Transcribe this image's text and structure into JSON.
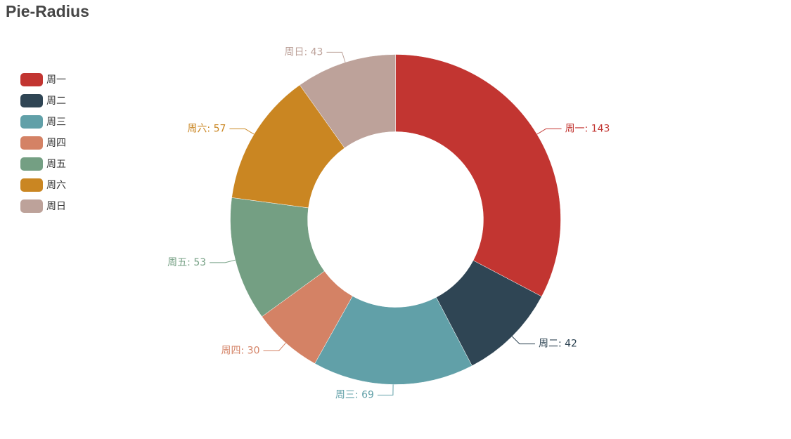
{
  "title": "Pie-Radius",
  "legend": [
    {
      "label": "周一",
      "color": "#c23531"
    },
    {
      "label": "周二",
      "color": "#2f4554"
    },
    {
      "label": "周三",
      "color": "#61a0a8"
    },
    {
      "label": "周四",
      "color": "#d48265"
    },
    {
      "label": "周五",
      "color": "#749f83"
    },
    {
      "label": "周六",
      "color": "#ca8622"
    },
    {
      "label": "周日",
      "color": "#bda29a"
    }
  ],
  "chart_data": {
    "type": "pie",
    "title": "Pie-Radius",
    "categories": [
      "周一",
      "周二",
      "周三",
      "周四",
      "周五",
      "周六",
      "周日"
    ],
    "values": [
      143,
      42,
      69,
      30,
      53,
      57,
      43
    ],
    "labels": [
      "周一: 143",
      "周二: 42",
      "周三: 69",
      "周四: 30",
      "周五: 53",
      "周六: 57",
      "周日: 43"
    ],
    "colors": [
      "#c23531",
      "#2f4554",
      "#61a0a8",
      "#d48265",
      "#749f83",
      "#ca8622",
      "#bda29a"
    ],
    "legend_position": "left"
  }
}
